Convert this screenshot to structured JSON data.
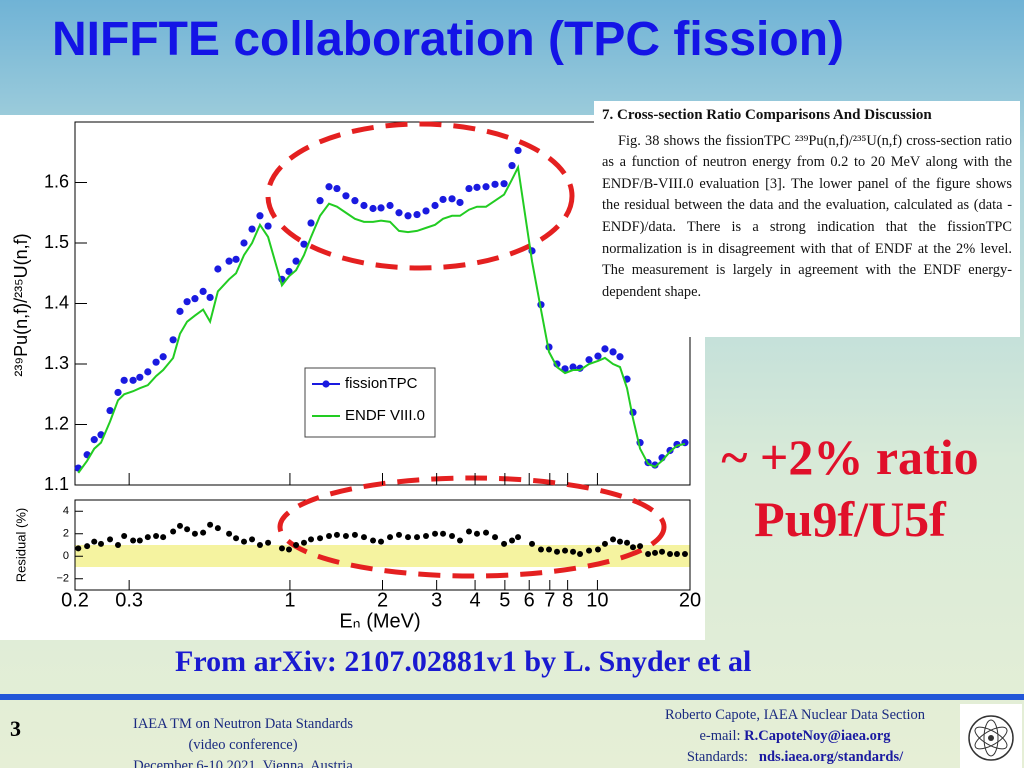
{
  "slide": {
    "title": "NIFFTE collaboration (TPC fission)",
    "paper": {
      "heading": "7. Cross-section Ratio Comparisons And Discussion",
      "body": "Fig. 38 shows the fissionTPC ²³⁹Pu(n,f)/²³⁵U(n,f) cross-section ratio as a function of neutron energy from 0.2 to 20 MeV along with the ENDF/B-VIII.0 evaluation [3]. The lower panel of the figure shows the residual between the data and the evaluation, calculated as (data - ENDF)/data. There is a strong indication that the fissionTPC normalization is in disagreement with that of ENDF at the 2% level. The measurement is largely in agreement with the ENDF energy-dependent shape."
    },
    "annotation": [
      "~ +2% ratio",
      "Pu9f/U5f"
    ],
    "source": "From arXiv: 2107.02881v1 by L. Snyder et al",
    "footer": {
      "page": "3",
      "event": [
        "IAEA TM on Neutron Data Standards",
        "(video conference)",
        "December 6-10 2021, Vienna, Austria"
      ],
      "contact": "Roberto Capote, IAEA Nuclear Data Section",
      "email_label": "e-mail:",
      "email": "R.CapoteNoy@iaea.org",
      "standards_label": "Standards:",
      "standards_url": "nds.iaea.org/standards/"
    }
  },
  "chart_data": [
    {
      "type": "scatter",
      "y_label": "²³⁹Pu(n,f)/²³⁵U(n,f)",
      "log_x": true,
      "legend": "lower center",
      "x": [
        0.205,
        0.219,
        0.231,
        0.243,
        0.26,
        0.276,
        0.289,
        0.309,
        0.325,
        0.345,
        0.367,
        0.387,
        0.417,
        0.439,
        0.463,
        0.491,
        0.522,
        0.55,
        0.583,
        0.634,
        0.668,
        0.709,
        0.753,
        0.799,
        0.849,
        0.942,
        0.993,
        1.047,
        1.111,
        1.171,
        1.253,
        1.34,
        1.422,
        1.521,
        1.627,
        1.741,
        1.863,
        1.978,
        2.116,
        2.263,
        2.421,
        2.59,
        2.77,
        2.964,
        3.147,
        3.366,
        3.573,
        3.822,
        4.058,
        4.342,
        4.645,
        4.97,
        5.275,
        5.518,
        6.127,
        6.552,
        6.958,
        7.388,
        7.846,
        8.33,
        8.778,
        9.39,
        10.04,
        10.58,
        11.24,
        11.84,
        12.48,
        13.05,
        13.76,
        14.61,
        15.39,
        16.22,
        17.22,
        18.14,
        19.26
      ],
      "series": [
        {
          "name": "fissionTPC",
          "mode": "markers",
          "color": "#1a1ae0",
          "values": [
            1.128,
            1.15,
            1.175,
            1.183,
            1.223,
            1.253,
            1.273,
            1.273,
            1.278,
            1.287,
            1.303,
            1.312,
            1.34,
            1.387,
            1.403,
            1.408,
            1.42,
            1.41,
            1.457,
            1.47,
            1.473,
            1.5,
            1.523,
            1.545,
            1.528,
            1.44,
            1.453,
            1.47,
            1.498,
            1.533,
            1.57,
            1.593,
            1.59,
            1.578,
            1.57,
            1.562,
            1.557,
            1.558,
            1.562,
            1.55,
            1.545,
            1.547,
            1.553,
            1.562,
            1.572,
            1.573,
            1.567,
            1.59,
            1.592,
            1.593,
            1.597,
            1.598,
            1.628,
            1.653,
            1.487,
            1.398,
            1.328,
            1.3,
            1.292,
            1.295,
            1.293,
            1.307,
            1.313,
            1.325,
            1.32,
            1.312,
            1.275,
            1.22,
            1.17,
            1.137,
            1.133,
            1.145,
            1.157,
            1.167,
            1.17
          ]
        },
        {
          "name": "ENDF VIII.0",
          "mode": "line",
          "color": "#22cc22",
          "values": [
            1.12,
            1.14,
            1.16,
            1.17,
            1.205,
            1.24,
            1.25,
            1.255,
            1.26,
            1.265,
            1.28,
            1.29,
            1.31,
            1.35,
            1.37,
            1.38,
            1.39,
            1.37,
            1.42,
            1.44,
            1.45,
            1.48,
            1.5,
            1.53,
            1.51,
            1.43,
            1.445,
            1.455,
            1.48,
            1.51,
            1.545,
            1.565,
            1.56,
            1.55,
            1.54,
            1.535,
            1.535,
            1.537,
            1.535,
            1.52,
            1.518,
            1.52,
            1.525,
            1.53,
            1.54,
            1.545,
            1.545,
            1.555,
            1.56,
            1.56,
            1.57,
            1.58,
            1.605,
            1.625,
            1.47,
            1.39,
            1.32,
            1.295,
            1.285,
            1.29,
            1.29,
            1.3,
            1.305,
            1.31,
            1.3,
            1.295,
            1.26,
            1.21,
            1.16,
            1.135,
            1.13,
            1.14,
            1.155,
            1.165,
            1.168
          ]
        }
      ],
      "xlim": [
        0.2,
        20
      ],
      "ylim": [
        1.1,
        1.7
      ],
      "yticks": [
        1.1,
        1.2,
        1.3,
        1.4,
        1.5,
        1.6
      ]
    },
    {
      "type": "scatter",
      "y_label": "Residual (%)",
      "x_label": "Eₙ (MeV)",
      "log_x": true,
      "x": [
        0.205,
        0.219,
        0.231,
        0.243,
        0.26,
        0.276,
        0.289,
        0.309,
        0.325,
        0.345,
        0.367,
        0.387,
        0.417,
        0.439,
        0.463,
        0.491,
        0.522,
        0.55,
        0.583,
        0.634,
        0.668,
        0.709,
        0.753,
        0.799,
        0.849,
        0.942,
        0.993,
        1.047,
        1.111,
        1.171,
        1.253,
        1.34,
        1.422,
        1.521,
        1.627,
        1.741,
        1.863,
        1.978,
        2.116,
        2.263,
        2.421,
        2.59,
        2.77,
        2.964,
        3.147,
        3.366,
        3.573,
        3.822,
        4.058,
        4.342,
        4.645,
        4.97,
        5.275,
        5.518,
        6.127,
        6.552,
        6.958,
        7.388,
        7.846,
        8.33,
        8.778,
        9.39,
        10.04,
        10.58,
        11.24,
        11.84,
        12.48,
        13.05,
        13.76,
        14.61,
        15.39,
        16.22,
        17.22,
        18.14,
        19.26
      ],
      "values": [
        0.7,
        0.9,
        1.3,
        1.1,
        1.5,
        1.0,
        1.8,
        1.4,
        1.4,
        1.7,
        1.8,
        1.7,
        2.2,
        2.7,
        2.4,
        2.0,
        2.1,
        2.8,
        2.5,
        2.0,
        1.6,
        1.3,
        1.5,
        1.0,
        1.2,
        0.7,
        0.6,
        1.0,
        1.2,
        1.5,
        1.6,
        1.8,
        1.9,
        1.8,
        1.9,
        1.7,
        1.4,
        1.3,
        1.7,
        1.9,
        1.7,
        1.7,
        1.8,
        2.0,
        2.0,
        1.8,
        1.4,
        2.2,
        2.0,
        2.1,
        1.7,
        1.1,
        1.4,
        1.7,
        1.1,
        0.6,
        0.6,
        0.4,
        0.5,
        0.4,
        0.2,
        0.5,
        0.6,
        1.1,
        1.5,
        1.3,
        1.2,
        0.8,
        0.9,
        0.2,
        0.3,
        0.4,
        0.2,
        0.2,
        0.2
      ],
      "color": "#000000",
      "xlim": [
        0.2,
        20
      ],
      "ylim": [
        -3,
        5
      ],
      "xticks": [
        0.2,
        0.3,
        1,
        2,
        3,
        4,
        5,
        6,
        7,
        8,
        10,
        20
      ],
      "yticks": [
        {
          "value": -2,
          "label": "−2"
        },
        0,
        2,
        4
      ]
    }
  ]
}
